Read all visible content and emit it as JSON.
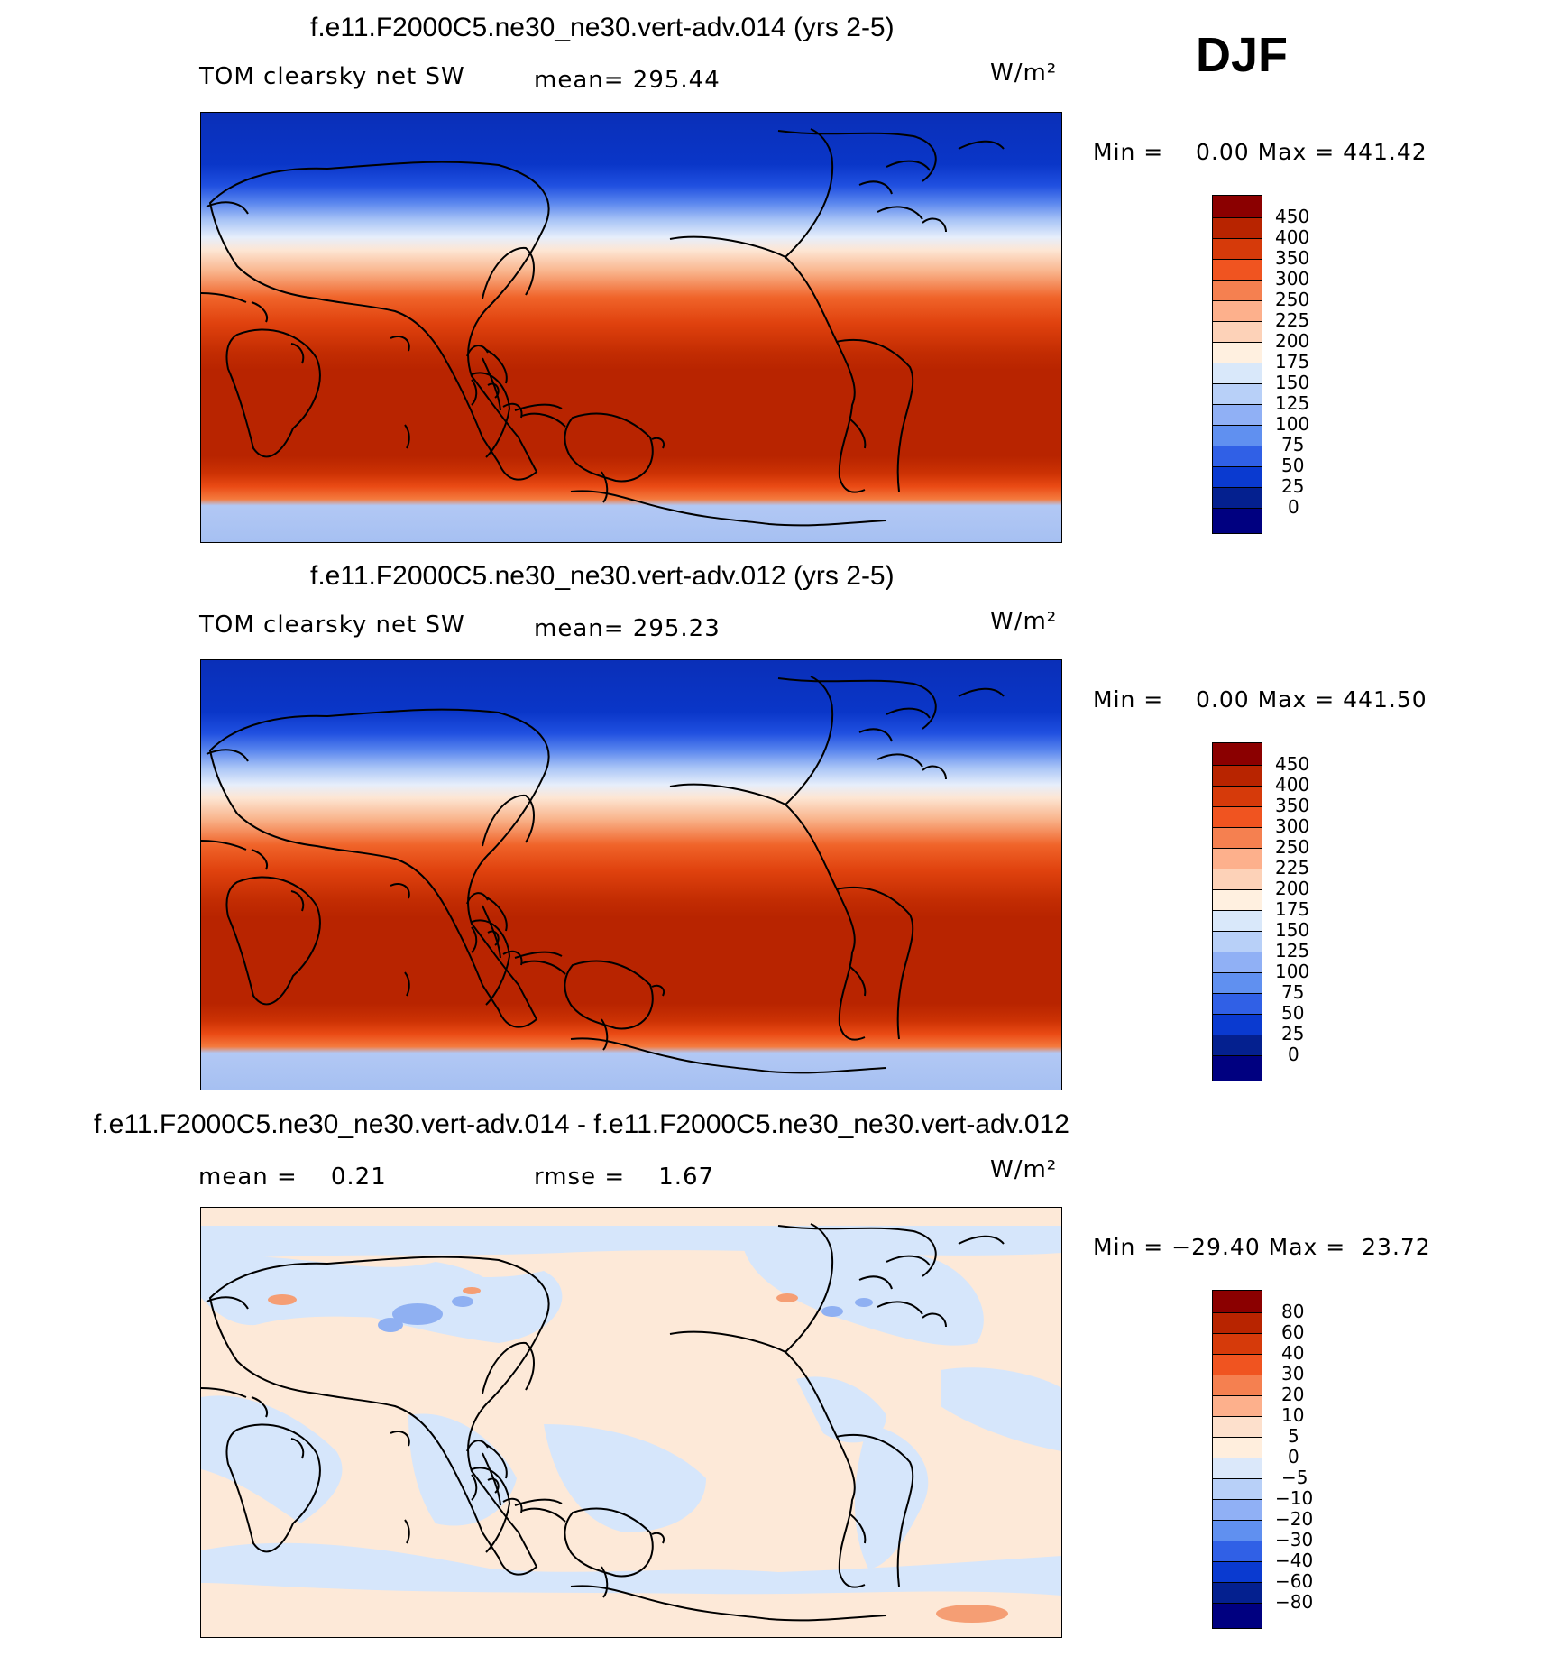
{
  "header": {
    "season": "DJF"
  },
  "panels": [
    {
      "title": "f.e11.F2000C5.ne30_ne30.vert-adv.014 (yrs 2-5)",
      "left_label": "TOM clearsky net SW",
      "center_label": "mean= 295.44",
      "units": "W/m²",
      "minmax": "Min =    0.00 Max = 441.42",
      "colorbar": {
        "labels": [
          "450",
          "400",
          "350",
          "300",
          "250",
          "225",
          "200",
          "175",
          "150",
          "125",
          "100",
          "75",
          "50",
          "25",
          "0"
        ],
        "colors": [
          "#8b0000",
          "#b82400",
          "#d63a0a",
          "#f05420",
          "#f58050",
          "#fdb08c",
          "#fdd2b8",
          "#fff0e0",
          "#d9e8fa",
          "#b8d0f8",
          "#90b0f5",
          "#6090f0",
          "#3060e6",
          "#0a3ad0",
          "#04208f",
          "#000080"
        ]
      }
    },
    {
      "title": "f.e11.F2000C5.ne30_ne30.vert-adv.012 (yrs 2-5)",
      "left_label": "TOM clearsky net SW",
      "center_label": "mean= 295.23",
      "units": "W/m²",
      "minmax": "Min =    0.00 Max = 441.50",
      "colorbar": {
        "labels": [
          "450",
          "400",
          "350",
          "300",
          "250",
          "225",
          "200",
          "175",
          "150",
          "125",
          "100",
          "75",
          "50",
          "25",
          "0"
        ],
        "colors": [
          "#8b0000",
          "#b82400",
          "#d63a0a",
          "#f05420",
          "#f58050",
          "#fdb08c",
          "#fdd2b8",
          "#fff0e0",
          "#d9e8fa",
          "#b8d0f8",
          "#90b0f5",
          "#6090f0",
          "#3060e6",
          "#0a3ad0",
          "#04208f",
          "#000080"
        ]
      }
    },
    {
      "title": "f.e11.F2000C5.ne30_ne30.vert-adv.014 - f.e11.F2000C5.ne30_ne30.vert-adv.012",
      "left_label": "mean =    0.21",
      "center_label": "rmse =    1.67",
      "units": "W/m²",
      "minmax": "Min = −29.40 Max =  23.72",
      "colorbar": {
        "labels": [
          "80",
          "60",
          "40",
          "30",
          "20",
          "10",
          "5",
          "0",
          "−5",
          "−10",
          "−20",
          "−30",
          "−40",
          "−60",
          "−80"
        ],
        "colors": [
          "#8b0000",
          "#b82400",
          "#d63a0a",
          "#f05420",
          "#f58050",
          "#fdb08c",
          "#fde0cc",
          "#ffeedd",
          "#dbe8fa",
          "#b8d0f8",
          "#90b0f5",
          "#6090f0",
          "#3060e6",
          "#0a3ad0",
          "#04208f",
          "#000080"
        ]
      }
    }
  ]
}
